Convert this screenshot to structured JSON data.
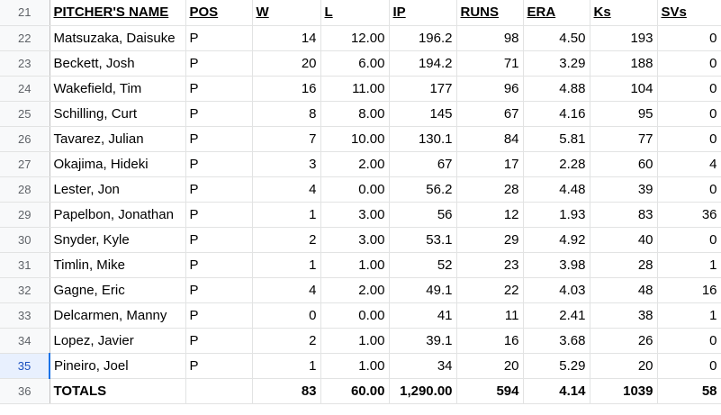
{
  "header_row": {
    "row_number": "21",
    "columns": [
      "PITCHER'S NAME",
      "POS",
      "W",
      "L",
      "IP",
      "RUNS",
      "ERA",
      "Ks",
      "SVs"
    ]
  },
  "rows": [
    {
      "row_number": "22",
      "name": "Matsuzaka, Daisuke",
      "pos": "P",
      "w": "14",
      "l": "12.00",
      "ip": "196.2",
      "runs": "98",
      "era": "4.50",
      "ks": "193",
      "svs": "0"
    },
    {
      "row_number": "23",
      "name": "Beckett, Josh",
      "pos": "P",
      "w": "20",
      "l": "6.00",
      "ip": "194.2",
      "runs": "71",
      "era": "3.29",
      "ks": "188",
      "svs": "0"
    },
    {
      "row_number": "24",
      "name": "Wakefield, Tim",
      "pos": "P",
      "w": "16",
      "l": "11.00",
      "ip": "177",
      "runs": "96",
      "era": "4.88",
      "ks": "104",
      "svs": "0"
    },
    {
      "row_number": "25",
      "name": "Schilling, Curt",
      "pos": "P",
      "w": "8",
      "l": "8.00",
      "ip": "145",
      "runs": "67",
      "era": "4.16",
      "ks": "95",
      "svs": "0"
    },
    {
      "row_number": "26",
      "name": "Tavarez, Julian",
      "pos": "P",
      "w": "7",
      "l": "10.00",
      "ip": "130.1",
      "runs": "84",
      "era": "5.81",
      "ks": "77",
      "svs": "0"
    },
    {
      "row_number": "27",
      "name": "Okajima, Hideki",
      "pos": "P",
      "w": "3",
      "l": "2.00",
      "ip": "67",
      "runs": "17",
      "era": "2.28",
      "ks": "60",
      "svs": "4"
    },
    {
      "row_number": "28",
      "name": "Lester, Jon",
      "pos": "P",
      "w": "4",
      "l": "0.00",
      "ip": "56.2",
      "runs": "28",
      "era": "4.48",
      "ks": "39",
      "svs": "0"
    },
    {
      "row_number": "29",
      "name": "Papelbon, Jonathan",
      "pos": "P",
      "w": "1",
      "l": "3.00",
      "ip": "56",
      "runs": "12",
      "era": "1.93",
      "ks": "83",
      "svs": "36"
    },
    {
      "row_number": "30",
      "name": "Snyder, Kyle",
      "pos": "P",
      "w": "2",
      "l": "3.00",
      "ip": "53.1",
      "runs": "29",
      "era": "4.92",
      "ks": "40",
      "svs": "0"
    },
    {
      "row_number": "31",
      "name": "Timlin, Mike",
      "pos": "P",
      "w": "1",
      "l": "1.00",
      "ip": "52",
      "runs": "23",
      "era": "3.98",
      "ks": "28",
      "svs": "1"
    },
    {
      "row_number": "32",
      "name": "Gagne, Eric",
      "pos": "P",
      "w": "4",
      "l": "2.00",
      "ip": "49.1",
      "runs": "22",
      "era": "4.03",
      "ks": "48",
      "svs": "16"
    },
    {
      "row_number": "33",
      "name": "Delcarmen, Manny",
      "pos": "P",
      "w": "0",
      "l": "0.00",
      "ip": "41",
      "runs": "11",
      "era": "2.41",
      "ks": "38",
      "svs": "1"
    },
    {
      "row_number": "34",
      "name": "Lopez, Javier",
      "pos": "P",
      "w": "2",
      "l": "1.00",
      "ip": "39.1",
      "runs": "16",
      "era": "3.68",
      "ks": "26",
      "svs": "0"
    },
    {
      "row_number": "35",
      "name": "Pineiro, Joel",
      "pos": "P",
      "w": "1",
      "l": "1.00",
      "ip": "34",
      "runs": "20",
      "era": "5.29",
      "ks": "20",
      "svs": "0",
      "selected": true
    }
  ],
  "totals": {
    "row_number": "36",
    "label": "TOTALS",
    "pos": "",
    "w": "83",
    "l": "60.00",
    "ip": "1,290.00",
    "runs": "594",
    "era": "4.14",
    "ks": "1039",
    "svs": "58"
  },
  "colors": {
    "gridline": "#e2e3e3",
    "row_header_bg": "#f8f9fa",
    "selected_row_header_bg": "#e8f0fe",
    "selected_accent": "#1a73e8"
  }
}
